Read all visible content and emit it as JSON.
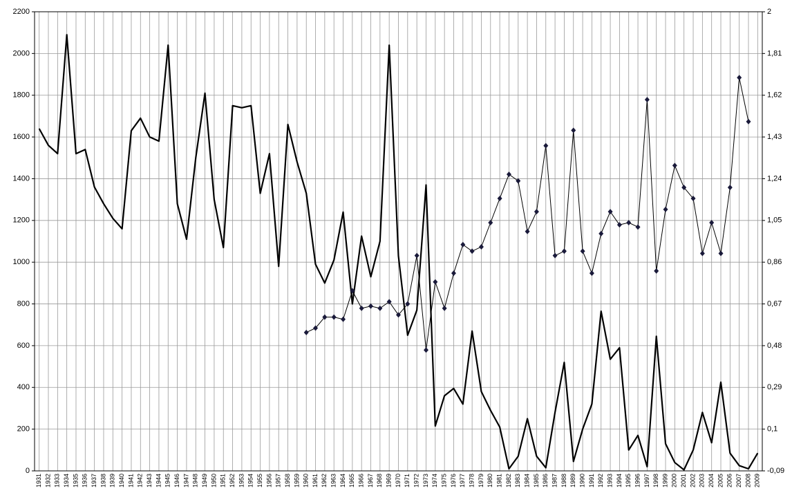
{
  "chart_data": {
    "type": "line",
    "categories": [
      "1931",
      "1932",
      "1933",
      "1934",
      "1935",
      "1936",
      "1937",
      "1938",
      "1939",
      "1940",
      "1941",
      "1942",
      "1943",
      "1944",
      "1945",
      "1946",
      "1947",
      "1948",
      "1949",
      "1950",
      "1951",
      "1952",
      "1953",
      "1954",
      "1955",
      "1956",
      "1957",
      "1958",
      "1959",
      "1960",
      "1961",
      "1962",
      "1963",
      "1964",
      "1965",
      "1966",
      "1967",
      "1968",
      "1969",
      "1970",
      "1971",
      "1972",
      "1973",
      "1974",
      "1975",
      "1976",
      "1977",
      "1978",
      "1979",
      "1980",
      "1981",
      "1982",
      "1983",
      "1984",
      "1985",
      "1986",
      "1987",
      "1988",
      "1989",
      "1990",
      "1991",
      "1992",
      "1993",
      "1994",
      "1995",
      "1996",
      "1997",
      "1998",
      "1999",
      "2000",
      "2001",
      "2002",
      "2003",
      "2004",
      "2005",
      "2006",
      "2007",
      "2008",
      "2009"
    ],
    "series": [
      {
        "color": "#000000",
        "values": [
          1640,
          1560,
          1520,
          2090,
          1520,
          1540,
          1360,
          1280,
          1210,
          1160,
          1630,
          1690,
          1600,
          1580,
          2040,
          1280,
          1110,
          1500,
          1810,
          1300,
          1070,
          1750,
          1740,
          1750,
          1330,
          1520,
          980,
          1660,
          1480,
          1330,
          990,
          900,
          1010,
          1240,
          800,
          1125,
          930,
          1100,
          2040,
          1030,
          650,
          770,
          1370,
          215,
          360,
          395,
          320,
          670,
          380,
          290,
          210,
          10,
          70,
          250,
          70,
          15,
          280,
          520,
          45,
          200,
          320,
          765,
          535,
          590,
          100,
          170,
          20,
          645,
          130,
          40,
          5,
          100,
          280,
          135,
          425,
          85,
          25,
          10,
          85
        ]
      },
      {
        "color": "#000000",
        "marker_color": "#1a1a3a",
        "axis": "y2",
        "values": [
          null,
          null,
          null,
          null,
          null,
          null,
          null,
          null,
          null,
          null,
          null,
          null,
          null,
          null,
          null,
          null,
          null,
          null,
          null,
          null,
          null,
          null,
          null,
          null,
          null,
          null,
          null,
          null,
          null,
          0.54,
          0.56,
          0.61,
          0.61,
          0.6,
          0.73,
          0.65,
          0.66,
          0.65,
          0.68,
          0.62,
          0.67,
          0.89,
          0.46,
          0.77,
          0.65,
          0.81,
          0.94,
          0.91,
          0.93,
          1.04,
          1.15,
          1.26,
          1.23,
          1.0,
          1.09,
          1.39,
          0.89,
          0.91,
          1.46,
          0.91,
          0.81,
          0.99,
          1.09,
          1.03,
          1.04,
          1.02,
          1.6,
          0.82,
          1.1,
          1.3,
          1.2,
          1.15,
          0.9,
          1.04,
          0.9,
          1.2,
          1.7,
          1.5,
          null
        ]
      }
    ],
    "ylim": [
      0,
      2200
    ],
    "yticks": [
      0,
      200,
      400,
      600,
      800,
      1000,
      1200,
      1400,
      1600,
      1800,
      2000,
      2200
    ],
    "y2lim": [
      -0.09,
      2
    ],
    "y2ticks": [
      {
        "value": -0.09,
        "label": "-0,09"
      },
      {
        "value": 0.1,
        "label": "0,1"
      },
      {
        "value": 0.29,
        "label": "0,29"
      },
      {
        "value": 0.48,
        "label": "0,48"
      },
      {
        "value": 0.67,
        "label": "0,67"
      },
      {
        "value": 0.86,
        "label": "0,86"
      },
      {
        "value": 1.05,
        "label": "1,05"
      },
      {
        "value": 1.24,
        "label": "1,24"
      },
      {
        "value": 1.43,
        "label": "1,43"
      },
      {
        "value": 1.62,
        "label": "1,62"
      },
      {
        "value": 1.81,
        "label": "1,81"
      },
      2
    ],
    "grid": true
  }
}
